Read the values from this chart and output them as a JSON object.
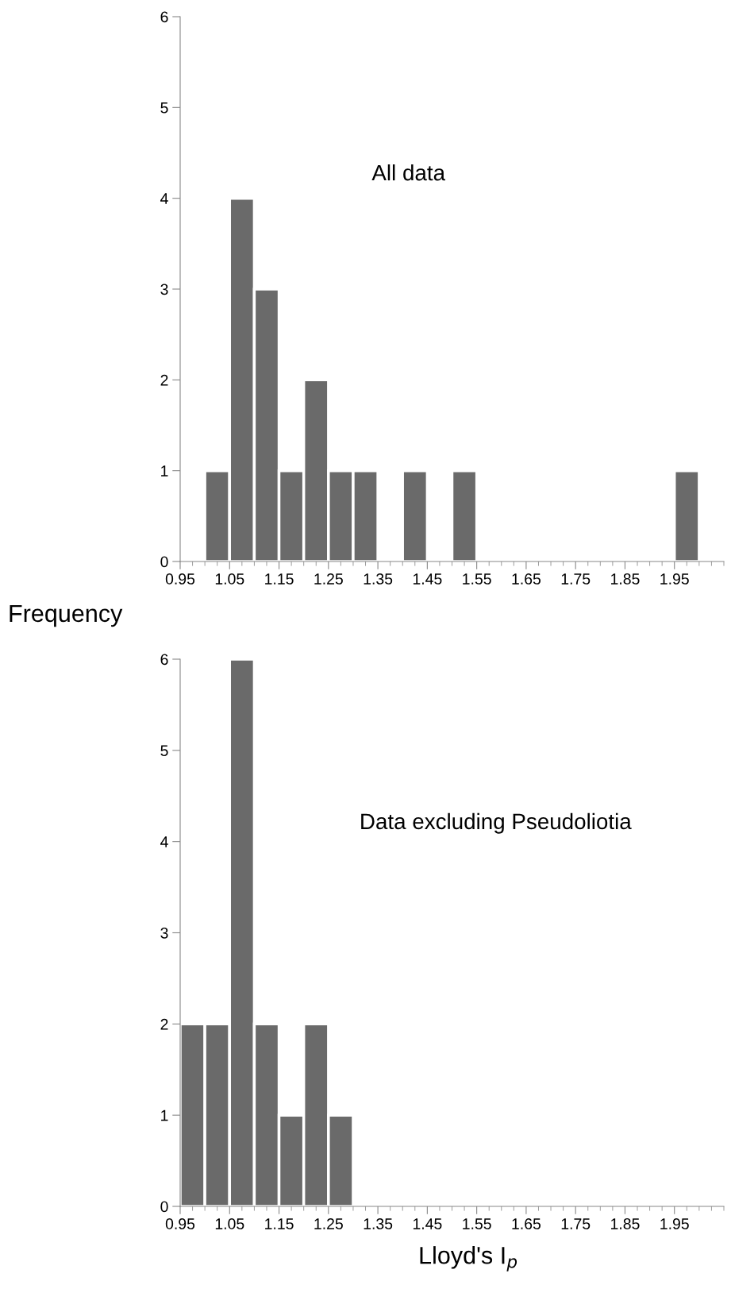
{
  "chart_data": [
    {
      "type": "histogram",
      "ylabel": "Frequency",
      "annotations": [
        "All data"
      ],
      "bins": [
        1.0,
        1.05,
        1.1,
        1.15,
        1.2,
        1.25,
        1.3,
        1.35,
        1.4,
        1.45,
        1.5,
        1.55,
        1.6,
        1.65,
        1.7,
        1.75,
        1.8,
        1.85,
        1.9,
        1.95,
        2.0
      ],
      "values": [
        1,
        4,
        3,
        1,
        2,
        1,
        1,
        0,
        1,
        0,
        1,
        0,
        0,
        0,
        0,
        0,
        0,
        0,
        0,
        1
      ],
      "color": "#6a6a6a",
      "xlim": [
        0.95,
        2.05
      ],
      "ylim": [
        0,
        6
      ],
      "xticks": [
        {
          "value": 0.95,
          "label": "0.95"
        },
        {
          "value": 1.05,
          "label": "1.05"
        },
        {
          "value": 1.15,
          "label": "1.15"
        },
        {
          "value": 1.25,
          "label": "1.25"
        },
        {
          "value": 1.35,
          "label": "1.35"
        },
        {
          "value": 1.45,
          "label": "1.45"
        },
        {
          "value": 1.55,
          "label": "1.55"
        },
        {
          "value": 1.65,
          "label": "1.65"
        },
        {
          "value": 1.75,
          "label": "1.75"
        },
        {
          "value": 1.85,
          "label": "1.85"
        },
        {
          "value": 1.95,
          "label": "1.95"
        }
      ],
      "yticks": [
        0,
        1,
        2,
        3,
        4,
        5,
        6
      ],
      "grid": false
    },
    {
      "type": "histogram",
      "xlabel": "Lloyd's I$_{p}$",
      "annotations": [
        "Data excluding Pseudoliotia"
      ],
      "bins": [
        0.95,
        1.0,
        1.05,
        1.1,
        1.15,
        1.2,
        1.25,
        1.3
      ],
      "values": [
        2,
        2,
        6,
        2,
        1,
        2,
        1
      ],
      "color": "#6a6a6a",
      "xlim": [
        0.95,
        2.05
      ],
      "ylim": [
        0,
        6
      ],
      "xticks": [
        {
          "value": 0.95,
          "label": "0.95"
        },
        {
          "value": 1.05,
          "label": "1.05"
        },
        {
          "value": 1.15,
          "label": "1.15"
        },
        {
          "value": 1.25,
          "label": "1.25"
        },
        {
          "value": 1.35,
          "label": "1.35"
        },
        {
          "value": 1.45,
          "label": "1.45"
        },
        {
          "value": 1.55,
          "label": "1.55"
        },
        {
          "value": 1.65,
          "label": "1.65"
        },
        {
          "value": 1.75,
          "label": "1.75"
        },
        {
          "value": 1.85,
          "label": "1.85"
        },
        {
          "value": 1.95,
          "label": "1.95"
        }
      ],
      "yticks": [
        0,
        1,
        2,
        3,
        4,
        5,
        6
      ],
      "grid": false
    }
  ]
}
